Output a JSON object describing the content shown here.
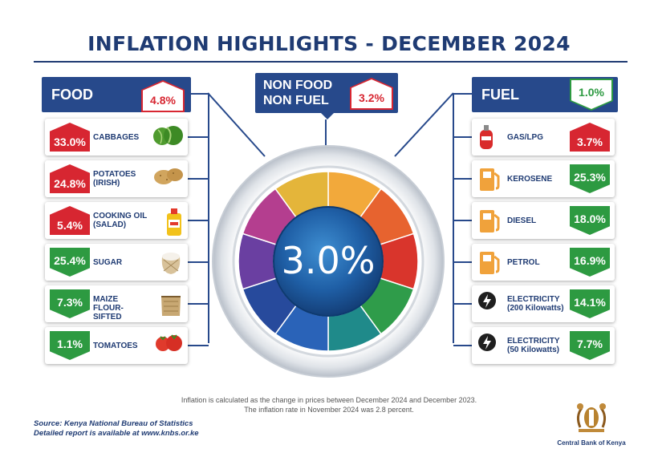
{
  "title": "INFLATION HIGHLIGHTS - DECEMBER 2024",
  "overall": {
    "value": "3.0%"
  },
  "food": {
    "name": "FOOD",
    "badge": "4.8%",
    "items": [
      {
        "value": "33.0%",
        "label": "CABBAGES",
        "direction": "up",
        "icon": "cabbage-icon"
      },
      {
        "value": "24.8%",
        "label": "POTATOES (IRISH)",
        "direction": "up",
        "icon": "potato-icon"
      },
      {
        "value": "5.4%",
        "label": "COOKING OIL (SALAD)",
        "direction": "up",
        "icon": "cooking-oil-icon"
      },
      {
        "value": "25.4%",
        "label": "SUGAR",
        "direction": "down",
        "icon": "sugar-sack-icon"
      },
      {
        "value": "7.3%",
        "label": "MAIZE FLOUR-SIFTED",
        "direction": "down",
        "icon": "flour-sack-icon"
      },
      {
        "value": "1.1%",
        "label": "TOMATOES",
        "direction": "down",
        "icon": "tomato-icon"
      }
    ]
  },
  "nonfood": {
    "name_line1": "NON FOOD",
    "name_line2": "NON FUEL",
    "badge": "3.2%"
  },
  "fuel": {
    "name": "FUEL",
    "badge": "1.0%",
    "items": [
      {
        "value": "3.7%",
        "label": "GAS/LPG",
        "direction": "up",
        "icon": "gas-cylinder-icon"
      },
      {
        "value": "25.3%",
        "label": "KEROSENE",
        "direction": "down",
        "icon": "fuel-pump-icon"
      },
      {
        "value": "18.0%",
        "label": "DIESEL",
        "direction": "down",
        "icon": "fuel-pump-icon"
      },
      {
        "value": "16.9%",
        "label": "PETROL",
        "direction": "down",
        "icon": "fuel-pump-icon"
      },
      {
        "value": "14.1%",
        "label": "ELECTRICITY (200 Kilowatts)",
        "direction": "down",
        "icon": "lightning-icon"
      },
      {
        "value": "7.7%",
        "label": "ELECTRICITY (50 Kilowatts)",
        "direction": "down",
        "icon": "lightning-icon"
      }
    ]
  },
  "colors": {
    "navy": "#27498b",
    "red": "#d72631",
    "green": "#2d9a41"
  },
  "note": {
    "line1": "Inflation is calculated as the change in prices between December 2024 and December 2023.",
    "line2": "The inflation rate in November 2024 was 2.8 percent."
  },
  "source": {
    "line1": "Source: Kenya National Bureau of Statistics",
    "line2": "Detailed report is available at www.knbs.or.ke"
  },
  "logo": {
    "name": "Central Bank of Kenya"
  }
}
